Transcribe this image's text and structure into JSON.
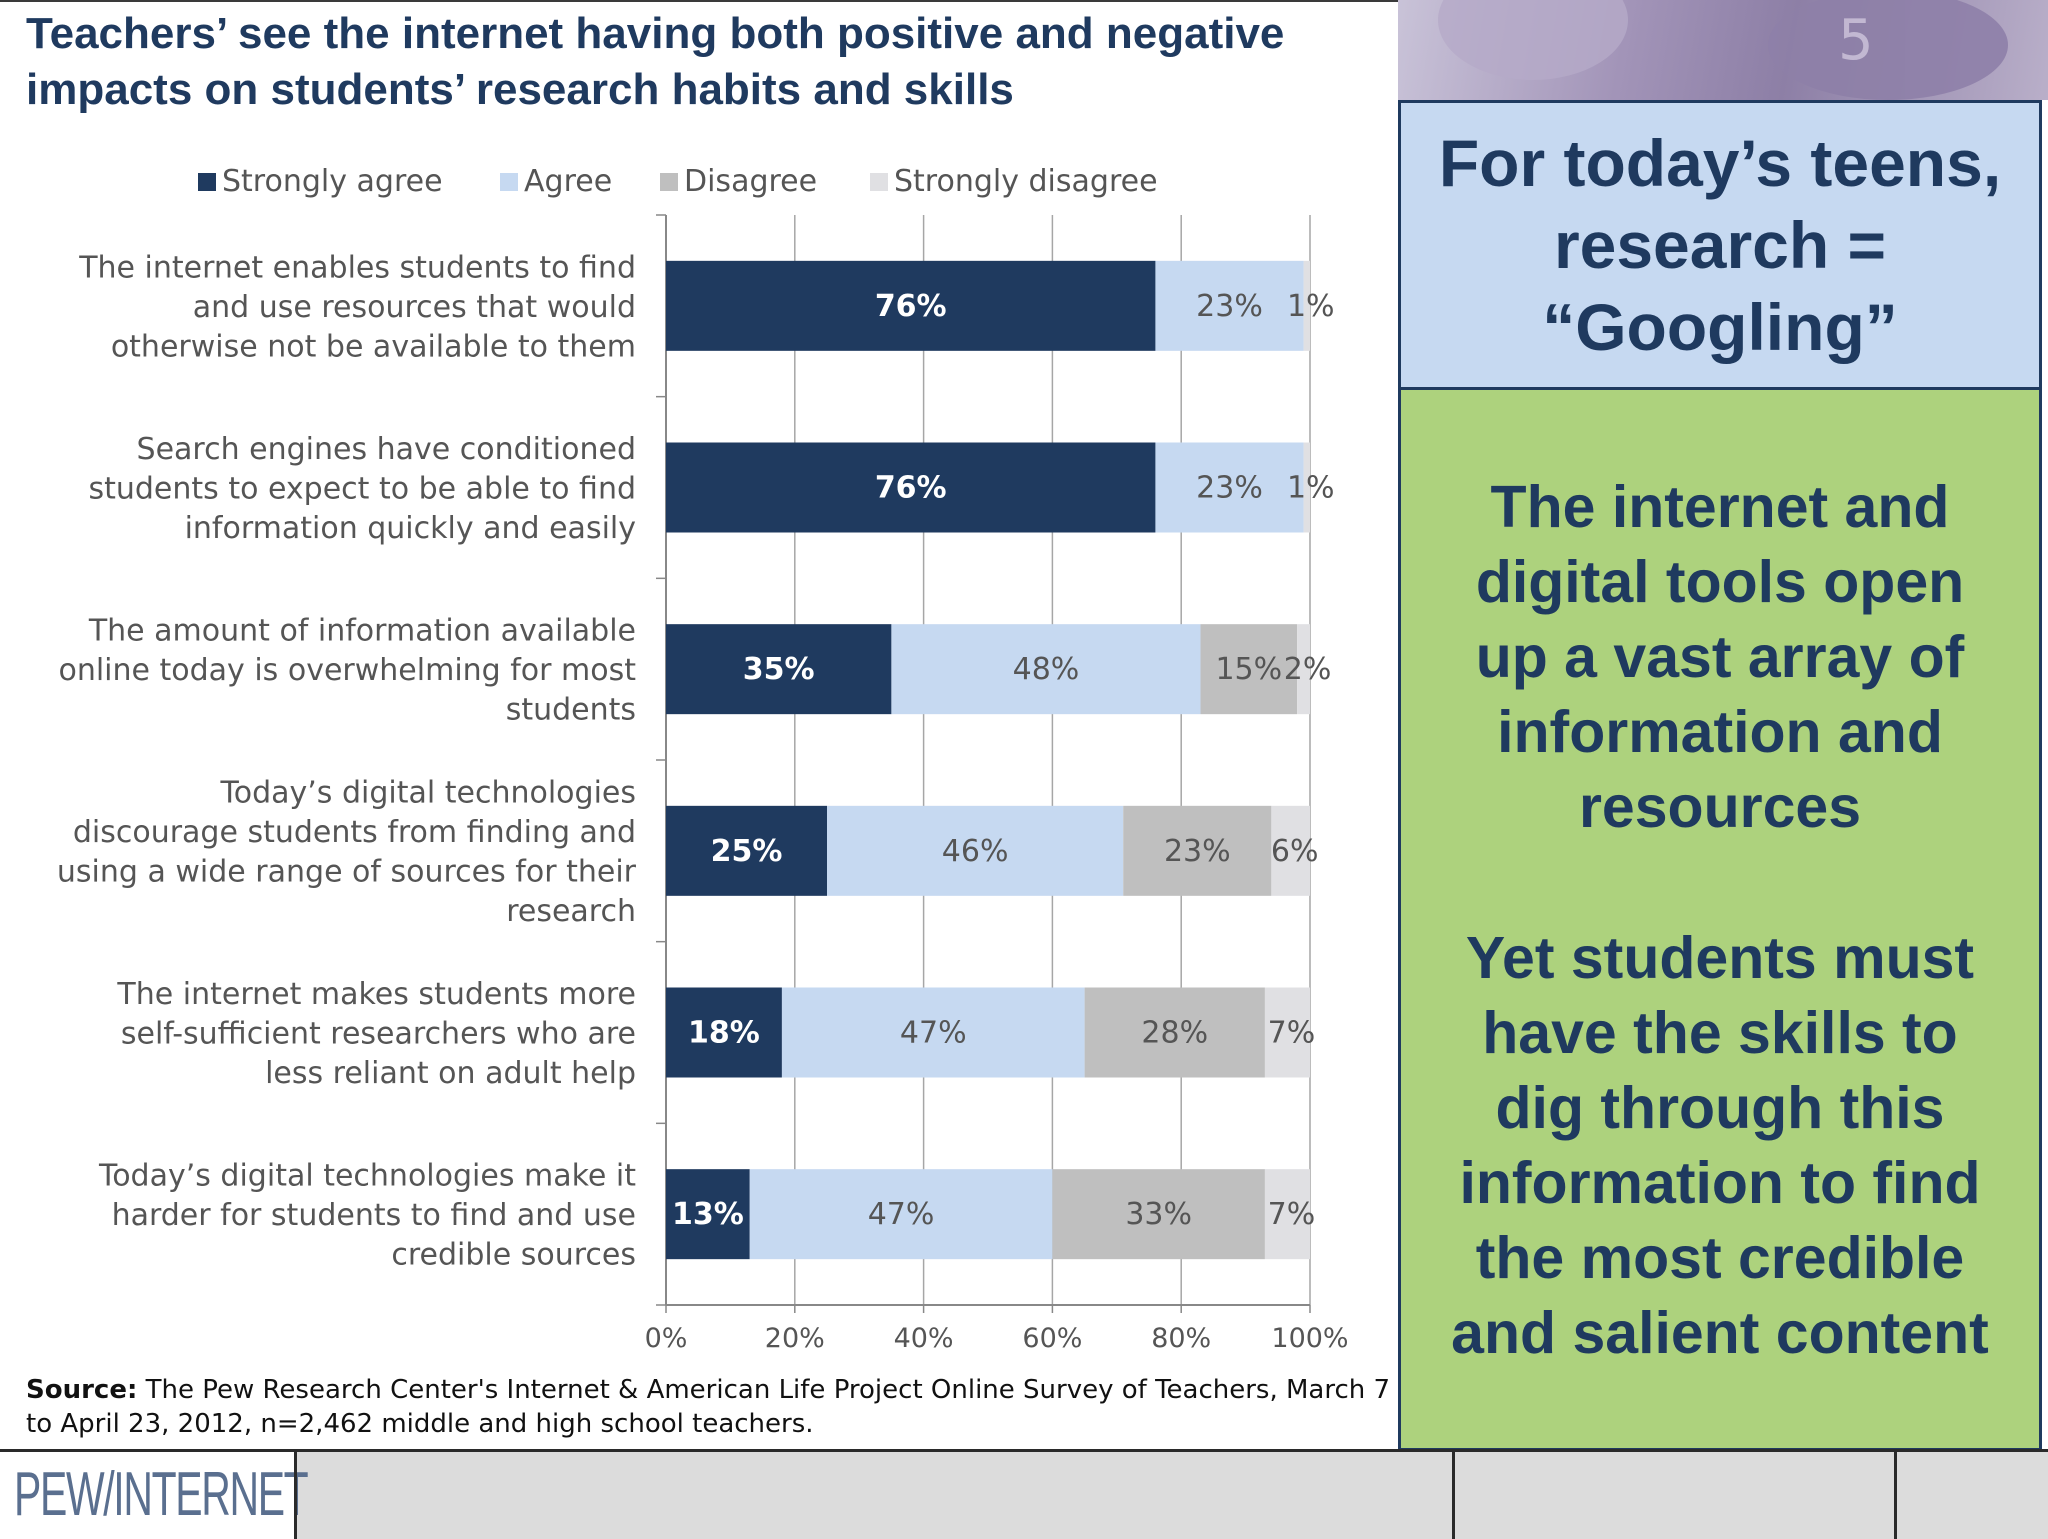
{
  "title": "Teachers’ see the internet having both positive and negative impacts on students’ research habits and skills",
  "chart_data": {
    "type": "bar",
    "orientation": "horizontal",
    "stacked": true,
    "legend_position": "top",
    "categories": [
      [
        "The internet enables students to find",
        "and use resources that would",
        "otherwise not be available to them"
      ],
      [
        "Search engines have conditioned",
        "students to expect to be able to find",
        "information quickly and easily"
      ],
      [
        "The amount of information available",
        "online today is overwhelming for most",
        "students"
      ],
      [
        "Today’s digital technologies",
        "discourage students from finding and",
        "using a wide range of sources for their",
        "research"
      ],
      [
        "The internet makes students more",
        "self-sufficient researchers who are",
        "less reliant on adult help"
      ],
      [
        "Today’s digital technologies make it",
        "harder for students to find and use",
        "credible sources"
      ]
    ],
    "series": [
      {
        "name": "Strongly agree",
        "color": "#1f3a5f",
        "label_color": "#ffffff",
        "values": [
          76,
          76,
          35,
          25,
          18,
          13
        ]
      },
      {
        "name": "Agree",
        "color": "#c6d9f1",
        "label_color": "#555555",
        "values": [
          23,
          23,
          48,
          46,
          47,
          47
        ]
      },
      {
        "name": "Disagree",
        "color": "#bfbfbf",
        "label_color": "#555555",
        "values": [
          0,
          0,
          15,
          23,
          28,
          33
        ]
      },
      {
        "name": "Strongly disagree",
        "color": "#e0e0e3",
        "label_color": "#555555",
        "values": [
          1,
          1,
          2,
          6,
          7,
          7
        ]
      }
    ],
    "data_labels": [
      [
        "76%",
        "23%",
        "",
        "1%"
      ],
      [
        "76%",
        "23%",
        "",
        "1%"
      ],
      [
        "35%",
        "48%",
        "15%",
        "2%"
      ],
      [
        "25%",
        "46%",
        "23%",
        "6%"
      ],
      [
        "18%",
        "47%",
        "28%",
        "7%"
      ],
      [
        "13%",
        "47%",
        "33%",
        "7%"
      ]
    ],
    "xlim": [
      0,
      100
    ],
    "xticks": [
      "0%",
      "20%",
      "40%",
      "60%",
      "80%",
      "100%"
    ],
    "grid": true
  },
  "source": {
    "label": "Source:",
    "text": " The Pew Research Center's Internet & American Life Project Online Survey of Teachers, March 7 to April 23, 2012, n=2,462 middle and high school teachers."
  },
  "sidebar": {
    "heading": "For today’s teens, research = “Googling”",
    "heading_lines": [
      "For today’s teens,",
      "research =",
      "“Googling”"
    ],
    "paragraph1_lines": [
      "The internet and",
      "digital tools open",
      "up a vast array of",
      "information and",
      "resources"
    ],
    "paragraph2_lines": [
      "Yet students must",
      "have the skills to",
      "dig through this",
      "information to find",
      "the most credible",
      "and salient content"
    ]
  },
  "photo_key_label": "5",
  "footer": {
    "logo": "PEW/INTERNET"
  }
}
